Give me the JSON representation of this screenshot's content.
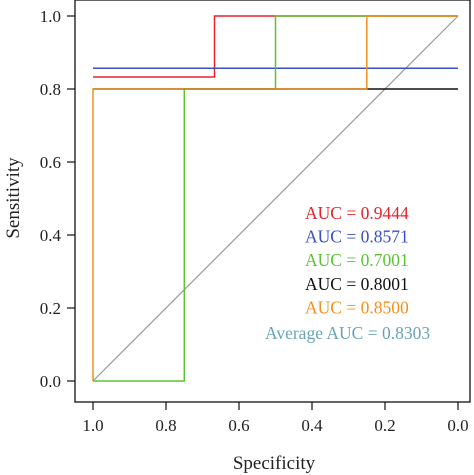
{
  "chart_data": {
    "type": "line",
    "title": "",
    "xlabel": "Specificity",
    "ylabel": "Sensitivity",
    "xlim": [
      1.0,
      0.0
    ],
    "ylim": [
      0.0,
      1.0
    ],
    "x_reversed": true,
    "grid": false,
    "legend_placement": "bottom-right",
    "x_ticks": [
      {
        "value": 1.0,
        "label": "1.0"
      },
      {
        "value": 0.8,
        "label": "0.8"
      },
      {
        "value": 0.6,
        "label": "0.6"
      },
      {
        "value": 0.4,
        "label": "0.4"
      },
      {
        "value": 0.2,
        "label": "0.2"
      },
      {
        "value": 0.0,
        "label": "0.0"
      }
    ],
    "y_ticks": [
      {
        "value": 0.0,
        "label": "0.0"
      },
      {
        "value": 0.2,
        "label": "0.2"
      },
      {
        "value": 0.4,
        "label": "0.4"
      },
      {
        "value": 0.6,
        "label": "0.6"
      },
      {
        "value": 0.8,
        "label": "0.8"
      },
      {
        "value": 1.0,
        "label": "1.0"
      }
    ],
    "reference_line": {
      "points": [
        [
          1.0,
          0.0
        ],
        [
          0.0,
          1.0
        ]
      ],
      "color": "#9a9a9a"
    },
    "series": [
      {
        "label": "AUC = 0.9444",
        "color": "#e8222a",
        "points": [
          [
            1.0,
            0.833
          ],
          [
            0.667,
            0.833
          ],
          [
            0.667,
            1.0
          ],
          [
            0.0,
            1.0
          ]
        ]
      },
      {
        "label": "AUC = 0.8571",
        "color": "#3a4fc4",
        "points": [
          [
            1.0,
            0.857
          ],
          [
            0.0,
            0.857
          ]
        ]
      },
      {
        "label": "AUC = 0.7001",
        "color": "#5cc433",
        "points": [
          [
            1.0,
            0.0
          ],
          [
            0.75,
            0.0
          ],
          [
            0.75,
            0.8
          ],
          [
            0.5,
            0.8
          ],
          [
            0.5,
            1.0
          ],
          [
            0.0,
            1.0
          ]
        ]
      },
      {
        "label": "AUC = 0.8001",
        "color": "#111111",
        "points": [
          [
            1.0,
            0.8
          ],
          [
            0.25,
            0.8
          ],
          [
            0.0,
            0.8
          ]
        ]
      },
      {
        "label": "AUC = 0.8500",
        "color": "#f0901e",
        "points": [
          [
            1.0,
            0.0
          ],
          [
            1.0,
            0.8
          ],
          [
            0.25,
            0.8
          ],
          [
            0.25,
            1.0
          ],
          [
            0.0,
            1.0
          ]
        ]
      }
    ],
    "summary_label": {
      "text": "Average AUC = 0.8303",
      "color": "#6aa3b8"
    }
  }
}
